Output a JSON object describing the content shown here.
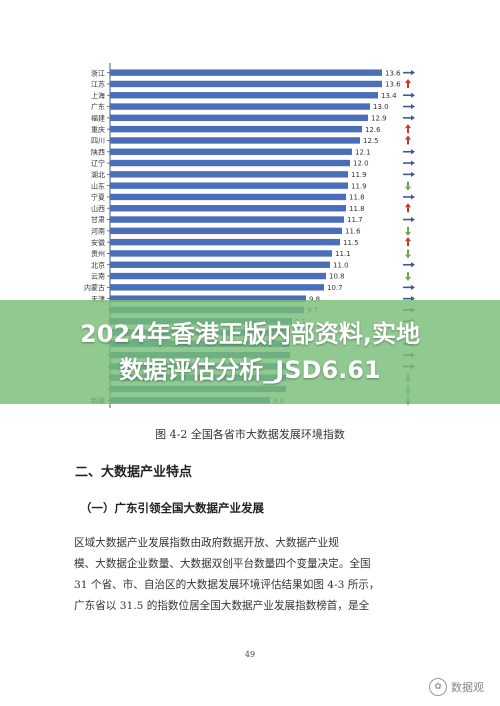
{
  "banner": {
    "line1": "2024年香港正版内部资料,实地",
    "line2": "数据评估分析_JSD6.61"
  },
  "figure_caption": "图 4-2 全国各省市大数据发展环境指数",
  "section_heading": "二、大数据产业特点",
  "subsection_heading": "（一）广东引领全国大数据产业发展",
  "paragraph_lines": [
    "区域大数据产业发展指数由政府数据开放、大数据产业规",
    "模、大数据企业数量、大数据双创平台数量四个变量决定。全国",
    "31 个省、市、自治区的大数据发展环境评估结果如图 4-3 所示，",
    "广东省以 31.5 的指数位居全国大数据产业发展指数榜首，是全"
  ],
  "page_number": "49",
  "watermark": {
    "icon": "wechat-icon",
    "text": "数据观"
  },
  "colors": {
    "bar": "#4a6fb8",
    "axis": "#555555",
    "trend_up": "#c0392b",
    "trend_down": "#6aa84f",
    "trend_flat": "#3d5a98",
    "banner": "#78be78"
  },
  "chart_data": {
    "type": "bar",
    "orientation": "horizontal",
    "title": "",
    "xlabel": "",
    "ylabel": "",
    "xlim": [
      0,
      14
    ],
    "grid": false,
    "legend": "none",
    "categories": [
      "浙江",
      "江苏",
      "上海",
      "广东",
      "福建",
      "重庆",
      "四川",
      "陕西",
      "辽宁",
      "湖北",
      "山东",
      "宁夏",
      "山西",
      "甘肃",
      "河南",
      "安徽",
      "贵州",
      "北京",
      "云南",
      "内蒙古",
      "天津",
      "",
      "",
      "",
      "",
      "",
      "",
      "",
      "",
      "新疆"
    ],
    "values": [
      13.6,
      13.6,
      13.4,
      13.0,
      12.9,
      12.6,
      12.5,
      12.1,
      12.0,
      11.9,
      11.9,
      11.8,
      11.8,
      11.7,
      11.6,
      11.5,
      11.1,
      11.0,
      10.8,
      10.7,
      9.8,
      9.7,
      9.1,
      9.0,
      9.0,
      9.0,
      8.8,
      8.8,
      8.8,
      8.0
    ],
    "value_labels": [
      "13.6",
      "13.6",
      "13.4",
      "13.0",
      "12.9",
      "12.6",
      "12.5",
      "12.1",
      "12.0",
      "11.9",
      "11.9",
      "11.8",
      "11.8",
      "11.7",
      "11.6",
      "11.5",
      "11.1",
      "11.0",
      "10.8",
      "10.7",
      "9.8",
      "9.7",
      "9.1",
      "",
      "",
      "",
      "",
      "",
      "",
      "8.0"
    ],
    "trends": [
      "flat",
      "up",
      "flat",
      "flat",
      "flat",
      "up",
      "up",
      "flat",
      "flat",
      "flat",
      "down",
      "flat",
      "up",
      "flat",
      "down",
      "up",
      "down",
      "flat",
      "down",
      "flat",
      "flat",
      "flat",
      "flat",
      "flat",
      "flat",
      "flat",
      "flat",
      "down",
      "down",
      "down"
    ]
  }
}
